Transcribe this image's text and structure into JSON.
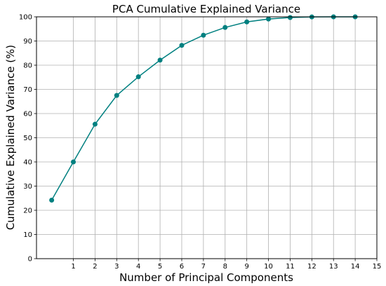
{
  "chart_data": {
    "type": "line",
    "title": "PCA Cumulative Explained Variance",
    "xlabel": "Number of Principal Components",
    "ylabel": "Cumulative Explained Variance (%)",
    "x": [
      0,
      1,
      2,
      3,
      4,
      5,
      6,
      7,
      8,
      9,
      10,
      11,
      12,
      13,
      14
    ],
    "series": [
      {
        "values": [
          24.2,
          40.0,
          55.6,
          67.5,
          75.2,
          82.1,
          88.2,
          92.4,
          95.6,
          97.9,
          99.1,
          99.7,
          99.95,
          100.0,
          100.0
        ]
      }
    ],
    "xticks": [
      "1",
      "2",
      "3",
      "4",
      "5",
      "6",
      "7",
      "8",
      "9",
      "10",
      "11",
      "12",
      "13",
      "14",
      "15"
    ],
    "yticks": [
      "0",
      "10",
      "20",
      "30",
      "40",
      "50",
      "60",
      "70",
      "80",
      "90",
      "100"
    ],
    "xlim": [
      -0.7,
      15
    ],
    "ylim": [
      0,
      100
    ],
    "grid": true,
    "color": "#008080"
  }
}
